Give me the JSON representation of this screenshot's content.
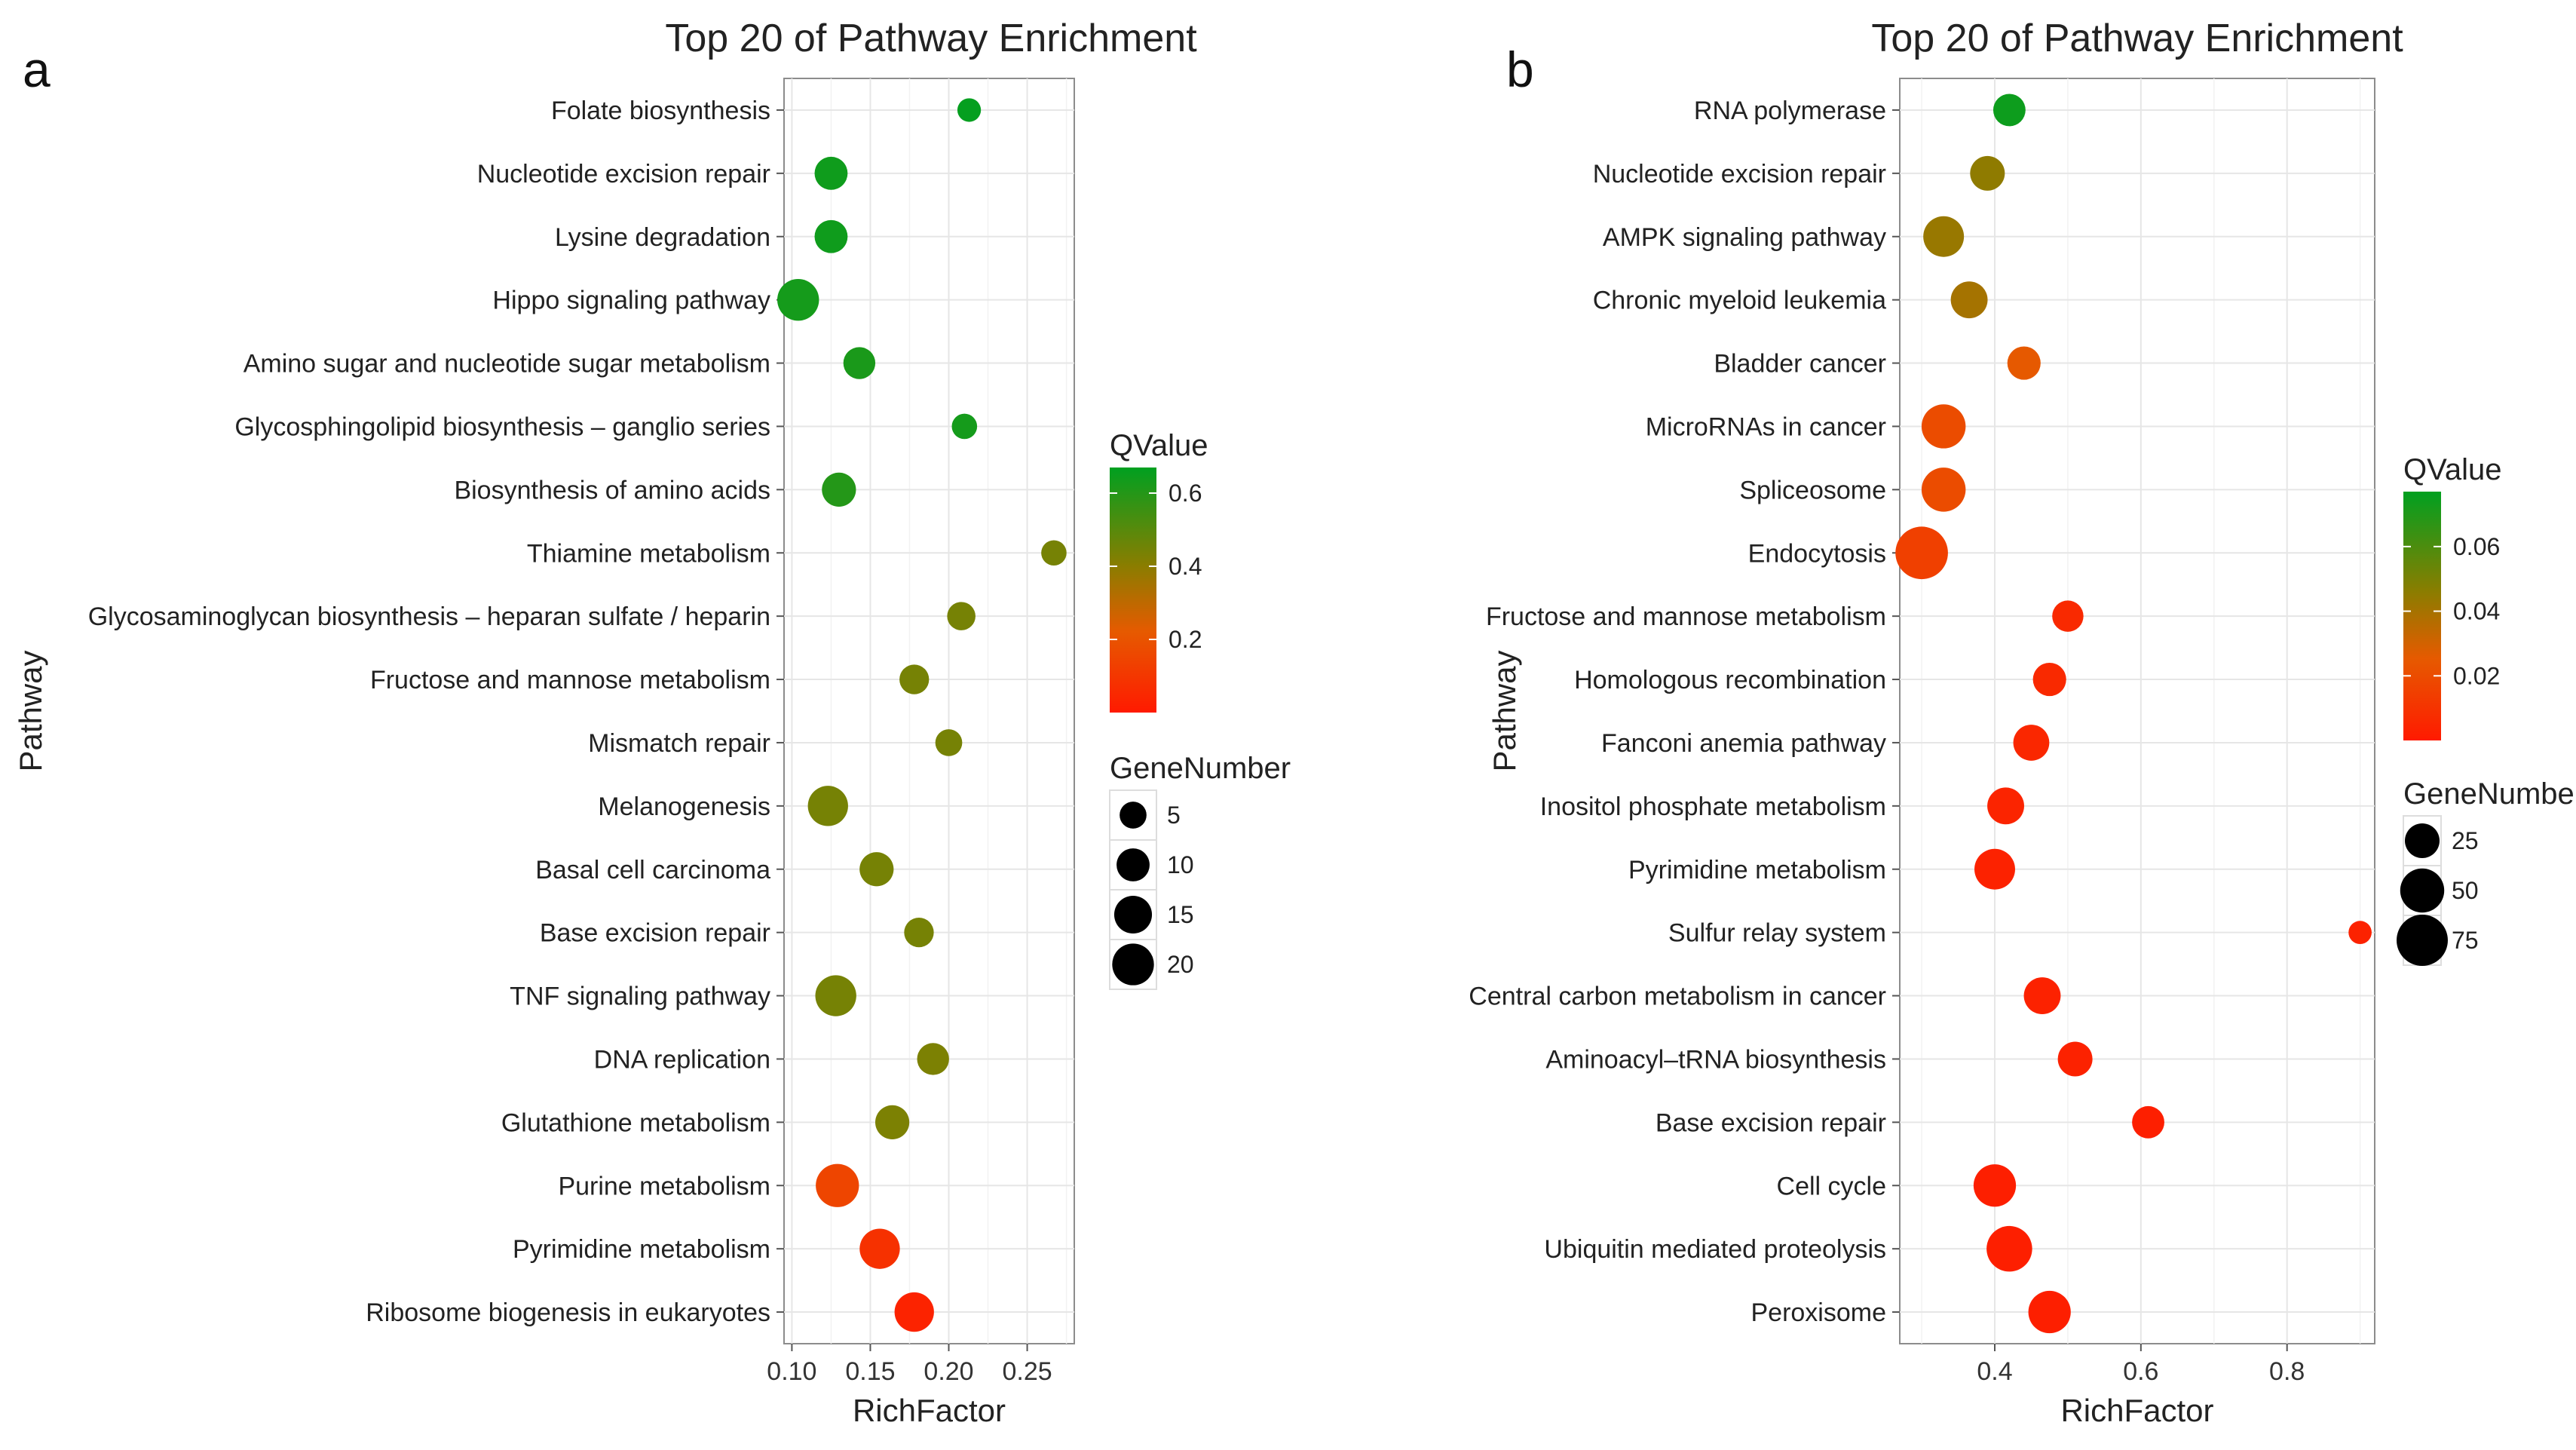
{
  "chart_data": [
    {
      "type": "scatter",
      "panel_label": "a",
      "title": "Top 20 of Pathway Enrichment",
      "xlabel": "RichFactor",
      "ylabel": "Pathway",
      "xlim": [
        0.095,
        0.28
      ],
      "xticks": [
        0.1,
        0.15,
        0.2,
        0.25
      ],
      "xtick_labels": [
        "0.10",
        "0.15",
        "0.20",
        "0.25"
      ],
      "grid": true,
      "categories": [
        "Folate biosynthesis",
        "Nucleotide excision repair",
        "Lysine degradation",
        "Hippo signaling pathway",
        "Amino sugar and nucleotide sugar metabolism",
        "Glycosphingolipid biosynthesis – ganglio series",
        "Biosynthesis of amino acids",
        "Thiamine metabolism",
        "Glycosaminoglycan biosynthesis – heparan sulfate / heparin",
        "Fructose and mannose metabolism",
        "Mismatch repair",
        "Melanogenesis",
        "Basal cell carcinoma",
        "Base excision repair",
        "TNF signaling pathway",
        "DNA replication",
        "Glutathione metabolism",
        "Purine metabolism",
        "Pyrimidine metabolism",
        "Ribosome biogenesis in eukaryotes"
      ],
      "rich_factor": [
        0.213,
        0.125,
        0.125,
        0.104,
        0.143,
        0.21,
        0.13,
        0.267,
        0.208,
        0.178,
        0.2,
        0.123,
        0.154,
        0.181,
        0.128,
        0.19,
        0.164,
        0.129,
        0.156,
        0.178
      ],
      "gene_number": [
        3,
        10,
        10,
        20,
        9,
        4,
        11,
        4,
        6,
        7,
        5,
        18,
        11,
        7,
        19,
        9,
        11,
        22,
        18,
        17
      ],
      "q_value": [
        0.66,
        0.64,
        0.64,
        0.63,
        0.62,
        0.63,
        0.6,
        0.44,
        0.44,
        0.44,
        0.44,
        0.44,
        0.44,
        0.44,
        0.44,
        0.43,
        0.43,
        0.15,
        0.08,
        0.03
      ],
      "color_legend": {
        "title": "QValue",
        "min": 0.0,
        "max": 0.67,
        "ticks": [
          0.2,
          0.4,
          0.6
        ],
        "tick_labels": [
          "0.2",
          "0.4",
          "0.6"
        ],
        "low_color": "#ff0000",
        "high_color": "#00a000"
      },
      "size_legend": {
        "title": "GeneNumber",
        "values": [
          5,
          10,
          15,
          20
        ],
        "labels": [
          "5",
          "10",
          "15",
          "20"
        ]
      },
      "legend_position": "right"
    },
    {
      "type": "scatter",
      "panel_label": "b",
      "title": "Top 20 of Pathway Enrichment",
      "xlabel": "RichFactor",
      "ylabel": "Pathway",
      "xlim": [
        0.27,
        0.92
      ],
      "xticks": [
        0.4,
        0.6,
        0.8
      ],
      "xtick_labels": [
        "0.4",
        "0.6",
        "0.8"
      ],
      "grid": true,
      "categories": [
        "RNA polymerase",
        "Nucleotide excision repair",
        "AMPK signaling pathway",
        "Chronic myeloid leukemia",
        "Bladder cancer",
        "MicroRNAs in cancer",
        "Spliceosome",
        "Endocytosis",
        "Fructose and mannose metabolism",
        "Homologous recombination",
        "Fanconi anemia pathway",
        "Inositol phosphate metabolism",
        "Pyrimidine metabolism",
        "Sulfur relay system",
        "Central carbon metabolism in cancer",
        "Aminoacyl–tRNA biosynthesis",
        "Base excision repair",
        "Cell cycle",
        "Ubiquitin mediated proteolysis",
        "Peroxisome"
      ],
      "rich_factor": [
        0.42,
        0.39,
        0.33,
        0.365,
        0.44,
        0.33,
        0.33,
        0.3,
        0.5,
        0.475,
        0.45,
        0.415,
        0.4,
        0.9,
        0.465,
        0.51,
        0.61,
        0.4,
        0.42,
        0.475
      ],
      "gene_number": [
        20,
        25,
        40,
        30,
        22,
        50,
        50,
        80,
        18,
        22,
        28,
        30,
        40,
        6,
        30,
        25,
        20,
        45,
        55,
        45
      ],
      "q_value": [
        0.074,
        0.045,
        0.043,
        0.04,
        0.025,
        0.02,
        0.02,
        0.015,
        0.006,
        0.006,
        0.005,
        0.004,
        0.003,
        0.003,
        0.003,
        0.003,
        0.002,
        0.002,
        0.002,
        0.002
      ],
      "color_legend": {
        "title": "QValue",
        "min": 0.0,
        "max": 0.077,
        "ticks": [
          0.02,
          0.04,
          0.06
        ],
        "tick_labels": [
          "0.02",
          "0.04",
          "0.06"
        ],
        "low_color": "#ff0000",
        "high_color": "#00a000"
      },
      "size_legend": {
        "title": "GeneNumber",
        "values": [
          25,
          50,
          75
        ],
        "labels": [
          "25",
          "50",
          "75"
        ]
      },
      "legend_position": "right"
    }
  ]
}
